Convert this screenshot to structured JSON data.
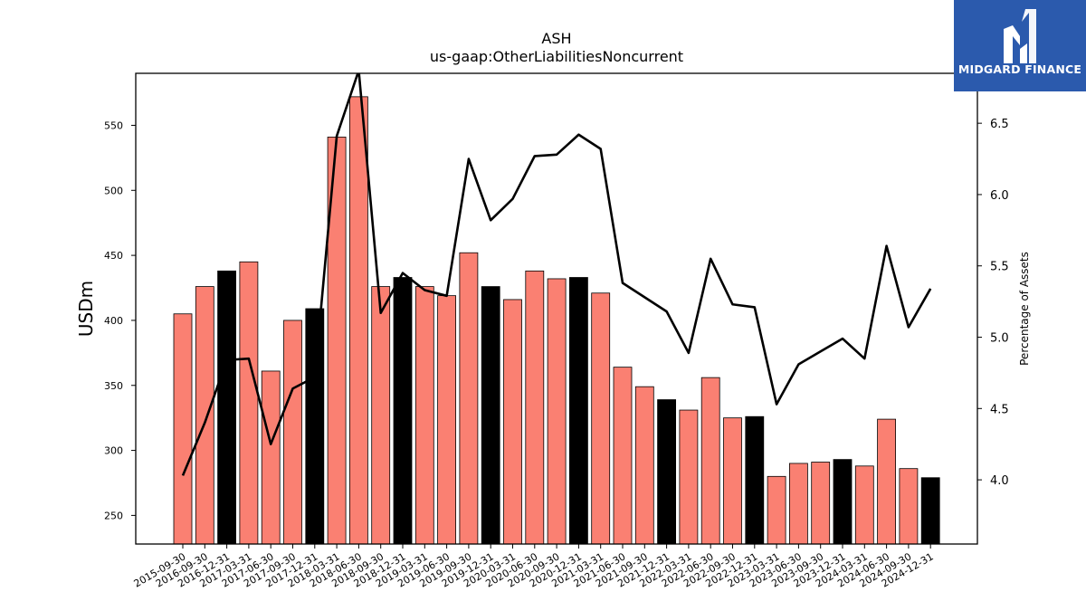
{
  "chart_data": {
    "type": "bar",
    "title": "ASH",
    "subtitle": "us-gaap:OtherLiabilitiesNoncurrent",
    "ylabel": "USDm",
    "y2label": "Percentage of Assets",
    "ylim": [
      228,
      590
    ],
    "y2lim": [
      3.55,
      6.85
    ],
    "yticks": [
      250,
      300,
      350,
      400,
      450,
      500,
      550
    ],
    "y2ticks": [
      4.0,
      4.5,
      5.0,
      5.5,
      6.0,
      6.5
    ],
    "categories": [
      "2015-09-30",
      "2016-09-30",
      "2016-12-31",
      "2017-03-31",
      "2017-06-30",
      "2017-09-30",
      "2017-12-31",
      "2018-03-31",
      "2018-06-30",
      "2018-09-30",
      "2018-12-31",
      "2019-03-31",
      "2019-06-30",
      "2019-09-30",
      "2019-12-31",
      "2020-03-31",
      "2020-06-30",
      "2020-09-30",
      "2020-12-31",
      "2021-03-31",
      "2021-06-30",
      "2021-09-30",
      "2021-12-31",
      "2022-03-31",
      "2022-06-30",
      "2022-09-30",
      "2022-12-31",
      "2023-03-31",
      "2023-06-30",
      "2023-09-30",
      "2023-12-31",
      "2024-03-31",
      "2024-06-30",
      "2024-09-30",
      "2024-12-31"
    ],
    "series": [
      {
        "kind": "bar",
        "axis": "left",
        "values": [
          405,
          426,
          438,
          445,
          361,
          400,
          409,
          541,
          572,
          426,
          433,
          426,
          419,
          452,
          426,
          416,
          438,
          432,
          433,
          421,
          364,
          349,
          339,
          331,
          356,
          325,
          326,
          280,
          290,
          291,
          293,
          288,
          324,
          286,
          279
        ],
        "colors": [
          "#fa8072",
          "#fa8072",
          "#000000",
          "#fa8072",
          "#fa8072",
          "#fa8072",
          "#000000",
          "#fa8072",
          "#fa8072",
          "#fa8072",
          "#000000",
          "#fa8072",
          "#fa8072",
          "#fa8072",
          "#000000",
          "#fa8072",
          "#fa8072",
          "#fa8072",
          "#000000",
          "#fa8072",
          "#fa8072",
          "#fa8072",
          "#000000",
          "#fa8072",
          "#fa8072",
          "#fa8072",
          "#000000",
          "#fa8072",
          "#fa8072",
          "#fa8072",
          "#000000",
          "#fa8072",
          "#fa8072",
          "#fa8072",
          "#000000"
        ]
      },
      {
        "kind": "line",
        "axis": "right",
        "color": "#000000",
        "values": [
          4.03,
          4.4,
          4.84,
          4.85,
          4.25,
          4.64,
          4.72,
          6.41,
          6.87,
          5.17,
          5.45,
          5.33,
          5.29,
          6.25,
          5.82,
          5.97,
          6.27,
          6.28,
          6.42,
          6.32,
          5.38,
          5.28,
          5.18,
          4.89,
          5.55,
          5.23,
          5.21,
          4.53,
          4.81,
          4.9,
          4.99,
          4.85,
          5.64,
          5.07,
          5.34
        ]
      }
    ],
    "grid": false,
    "legend": "none"
  },
  "logo": {
    "text": "MIDGARD FINANCE",
    "bg_color": "#2b5aad",
    "icon": "midgard-logo-icon"
  }
}
